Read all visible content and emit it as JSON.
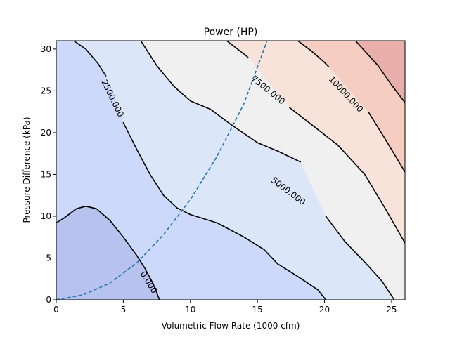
{
  "chart_data": {
    "type": "contour",
    "title": "Power (HP)",
    "xlabel": "Volumetric Flow Rate (1000 cfm)",
    "ylabel": "Pressure Difference (kPa)",
    "xlim": [
      0,
      26
    ],
    "ylim": [
      0,
      31
    ],
    "xticks": [
      0,
      5,
      10,
      15,
      20,
      25
    ],
    "yticks": [
      0,
      5,
      10,
      15,
      20,
      25,
      30
    ],
    "grid": false,
    "fill_levels": [
      {
        "range": "below 0",
        "color": "#b8c2ee"
      },
      {
        "range": "0 to 2500",
        "color": "#cdd9fb"
      },
      {
        "range": "2500 to 5000",
        "color": "#dce6f9"
      },
      {
        "range": "5000 to 7500",
        "color": "#f0f0f0"
      },
      {
        "range": "7500 to 10000",
        "color": "#f8e3da"
      },
      {
        "range": "10000 to 12500",
        "color": "#f5cdc1"
      },
      {
        "range": "above 12500",
        "color": "#e9b0ab"
      }
    ],
    "contour_lines": [
      {
        "label": "0.000",
        "points": [
          [
            0,
            9.2
          ],
          [
            0.6,
            9.8
          ],
          [
            1.5,
            10.9
          ],
          [
            2.2,
            11.2
          ],
          [
            3,
            10.9
          ],
          [
            4,
            9.5
          ],
          [
            5,
            7.5
          ],
          [
            6,
            5.3
          ],
          [
            6.6,
            3.8
          ],
          [
            7.2,
            2.0
          ],
          [
            7.7,
            0
          ]
        ]
      },
      {
        "label": "",
        "points": [
          [
            1.3,
            31
          ],
          [
            2.2,
            30
          ],
          [
            3.1,
            28.3
          ],
          [
            3.7,
            26.8
          ]
        ]
      },
      {
        "label": "2500.000",
        "points": [
          [
            5.0,
            21.2
          ],
          [
            6.0,
            18.0
          ],
          [
            7.0,
            15.0
          ],
          [
            8.0,
            12.5
          ],
          [
            9.0,
            11.0
          ],
          [
            10,
            10.2
          ],
          [
            12,
            9.2
          ],
          [
            14,
            7.5
          ],
          [
            15.5,
            6.0
          ],
          [
            16.5,
            4.3
          ],
          [
            18,
            2.8
          ],
          [
            19.5,
            1.2
          ],
          [
            20.1,
            0
          ]
        ]
      },
      {
        "label": "",
        "points": [
          [
            6.3,
            31
          ],
          [
            7.5,
            28.0
          ],
          [
            8.8,
            25.5
          ],
          [
            10,
            23.8
          ],
          [
            11.5,
            22.8
          ],
          [
            13,
            21.0
          ],
          [
            15,
            18.8
          ],
          [
            16.5,
            17.8
          ],
          [
            18.2,
            16.5
          ]
        ]
      },
      {
        "label": "5000.000",
        "points": [
          [
            20.1,
            10.0
          ],
          [
            21.5,
            7.0
          ],
          [
            23,
            4.5
          ],
          [
            24.3,
            2.2
          ],
          [
            25.2,
            0
          ]
        ]
      },
      {
        "label": "",
        "points": [
          [
            12.7,
            31
          ],
          [
            14,
            29.4
          ],
          [
            14.3,
            29.0
          ]
        ]
      },
      {
        "label": "7500.000",
        "points": [
          [
            17.4,
            23.0
          ],
          [
            19,
            21.0
          ],
          [
            21,
            18.5
          ],
          [
            23,
            15.0
          ],
          [
            24.5,
            11.0
          ],
          [
            26,
            6.8
          ]
        ]
      },
      {
        "label": "",
        "points": [
          [
            18.0,
            31
          ],
          [
            19,
            29.8
          ],
          [
            20,
            28.4
          ],
          [
            20.3,
            27.9
          ]
        ]
      },
      {
        "label": "10000.000",
        "points": [
          [
            23.3,
            22.4
          ],
          [
            24.5,
            19.3
          ],
          [
            26,
            15.3
          ]
        ]
      },
      {
        "label": "",
        "points": [
          [
            22.3,
            31
          ],
          [
            24,
            28.0
          ],
          [
            25,
            25.7
          ],
          [
            26,
            23.6
          ]
        ]
      }
    ],
    "contour_labels": [
      {
        "text": "0.000",
        "x": 6.9,
        "y": 2.1,
        "rotation": 58
      },
      {
        "text": "2500.000",
        "x": 4.2,
        "y": 24.1,
        "rotation": 64
      },
      {
        "text": "5000.000",
        "x": 17.3,
        "y": 13.0,
        "rotation": 37
      },
      {
        "text": "7500.000",
        "x": 15.8,
        "y": 25.1,
        "rotation": 39
      },
      {
        "text": "10000.000",
        "x": 21.6,
        "y": 24.6,
        "rotation": 47
      }
    ],
    "dashed_curve": {
      "color": "#1f77b4",
      "points": [
        [
          0,
          0
        ],
        [
          2,
          0.6
        ],
        [
          4,
          2.0
        ],
        [
          6,
          4.4
        ],
        [
          8,
          7.8
        ],
        [
          10,
          12.0
        ],
        [
          12,
          17.2
        ],
        [
          14,
          23.5
        ],
        [
          15.7,
          30.9
        ]
      ]
    }
  }
}
